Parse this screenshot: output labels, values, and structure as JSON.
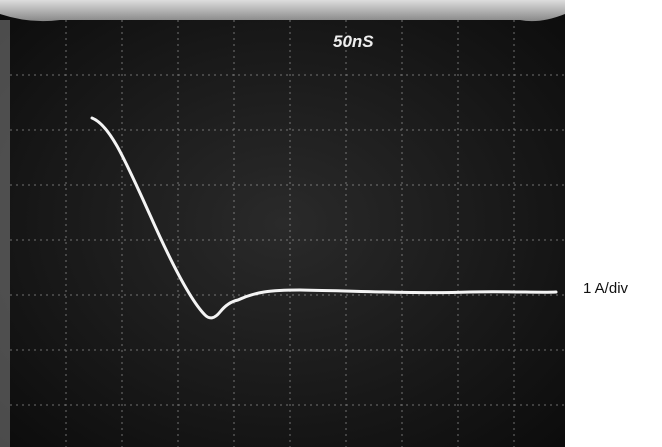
{
  "screen": {
    "timebase": "50nS"
  },
  "scale_label": "1 A/div"
}
